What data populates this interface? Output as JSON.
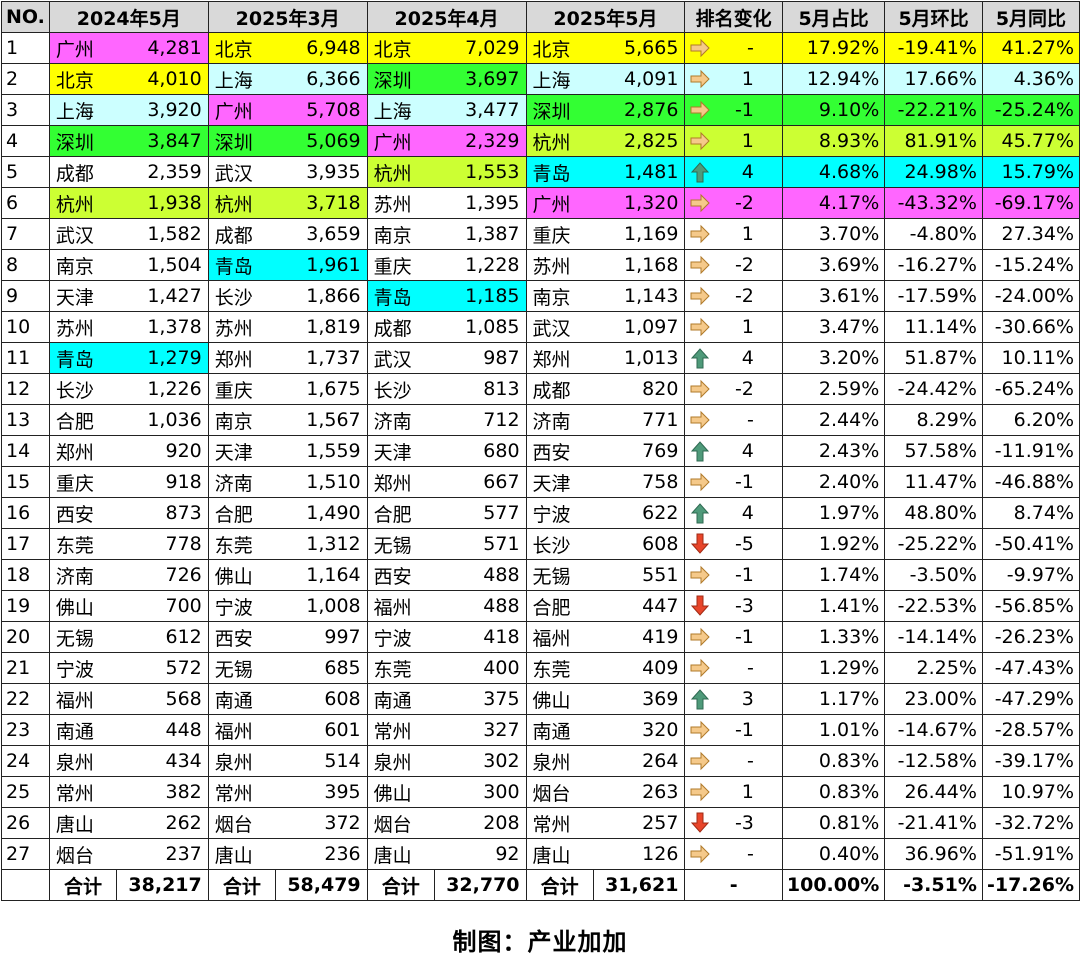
{
  "headers": [
    "NO.",
    "2024年5月",
    "2025年3月",
    "2025年4月",
    "2025年5月",
    "排名变化",
    "5月占比",
    "5月环比",
    "5月同比"
  ],
  "colors": {
    "yellow": "#ffff00",
    "magenta": "#ff66ff",
    "cyan_light": "#ccffff",
    "green": "#33ff33",
    "lime": "#ccff33",
    "cyan": "#00ffff",
    "arrow_right": "#f5c98a",
    "arrow_up": "#4f9a7a",
    "arrow_down": "#e8452a"
  },
  "rows": [
    {
      "no": "1",
      "c1": "广州",
      "v1": "4,281",
      "c2": "北京",
      "v2": "6,948",
      "c3": "北京",
      "v3": "7,029",
      "c4": "北京",
      "v4": "5,665",
      "arrow": "right",
      "chg": "-",
      "share": "17.92%",
      "mom": "-19.41%",
      "yoy": "41.27%"
    },
    {
      "no": "2",
      "c1": "北京",
      "v1": "4,010",
      "c2": "上海",
      "v2": "6,366",
      "c3": "深圳",
      "v3": "3,697",
      "c4": "上海",
      "v4": "4,091",
      "arrow": "right",
      "chg": "1",
      "share": "12.94%",
      "mom": "17.66%",
      "yoy": "4.36%"
    },
    {
      "no": "3",
      "c1": "上海",
      "v1": "3,920",
      "c2": "广州",
      "v2": "5,708",
      "c3": "上海",
      "v3": "3,477",
      "c4": "深圳",
      "v4": "2,876",
      "arrow": "right",
      "chg": "-1",
      "share": "9.10%",
      "mom": "-22.21%",
      "yoy": "-25.24%"
    },
    {
      "no": "4",
      "c1": "深圳",
      "v1": "3,847",
      "c2": "深圳",
      "v2": "5,069",
      "c3": "广州",
      "v3": "2,329",
      "c4": "杭州",
      "v4": "2,825",
      "arrow": "right",
      "chg": "1",
      "share": "8.93%",
      "mom": "81.91%",
      "yoy": "45.77%"
    },
    {
      "no": "5",
      "c1": "成都",
      "v1": "2,359",
      "c2": "武汉",
      "v2": "3,935",
      "c3": "杭州",
      "v3": "1,553",
      "c4": "青岛",
      "v4": "1,481",
      "arrow": "up",
      "chg": "4",
      "share": "4.68%",
      "mom": "24.98%",
      "yoy": "15.79%"
    },
    {
      "no": "6",
      "c1": "杭州",
      "v1": "1,938",
      "c2": "杭州",
      "v2": "3,718",
      "c3": "苏州",
      "v3": "1,395",
      "c4": "广州",
      "v4": "1,320",
      "arrow": "right",
      "chg": "-2",
      "share": "4.17%",
      "mom": "-43.32%",
      "yoy": "-69.17%"
    },
    {
      "no": "7",
      "c1": "武汉",
      "v1": "1,582",
      "c2": "成都",
      "v2": "3,659",
      "c3": "南京",
      "v3": "1,387",
      "c4": "重庆",
      "v4": "1,169",
      "arrow": "right",
      "chg": "1",
      "share": "3.70%",
      "mom": "-4.80%",
      "yoy": "27.34%"
    },
    {
      "no": "8",
      "c1": "南京",
      "v1": "1,504",
      "c2": "青岛",
      "v2": "1,961",
      "c3": "重庆",
      "v3": "1,228",
      "c4": "苏州",
      "v4": "1,168",
      "arrow": "right",
      "chg": "-2",
      "share": "3.69%",
      "mom": "-16.27%",
      "yoy": "-15.24%"
    },
    {
      "no": "9",
      "c1": "天津",
      "v1": "1,427",
      "c2": "长沙",
      "v2": "1,866",
      "c3": "青岛",
      "v3": "1,185",
      "c4": "南京",
      "v4": "1,143",
      "arrow": "right",
      "chg": "-2",
      "share": "3.61%",
      "mom": "-17.59%",
      "yoy": "-24.00%"
    },
    {
      "no": "10",
      "c1": "苏州",
      "v1": "1,378",
      "c2": "苏州",
      "v2": "1,819",
      "c3": "成都",
      "v3": "1,085",
      "c4": "武汉",
      "v4": "1,097",
      "arrow": "right",
      "chg": "1",
      "share": "3.47%",
      "mom": "11.14%",
      "yoy": "-30.66%"
    },
    {
      "no": "11",
      "c1": "青岛",
      "v1": "1,279",
      "c2": "郑州",
      "v2": "1,737",
      "c3": "武汉",
      "v3": "987",
      "c4": "郑州",
      "v4": "1,013",
      "arrow": "up",
      "chg": "4",
      "share": "3.20%",
      "mom": "51.87%",
      "yoy": "10.11%"
    },
    {
      "no": "12",
      "c1": "长沙",
      "v1": "1,226",
      "c2": "重庆",
      "v2": "1,675",
      "c3": "长沙",
      "v3": "813",
      "c4": "成都",
      "v4": "820",
      "arrow": "right",
      "chg": "-2",
      "share": "2.59%",
      "mom": "-24.42%",
      "yoy": "-65.24%"
    },
    {
      "no": "13",
      "c1": "合肥",
      "v1": "1,036",
      "c2": "南京",
      "v2": "1,567",
      "c3": "济南",
      "v3": "712",
      "c4": "济南",
      "v4": "771",
      "arrow": "right",
      "chg": "-",
      "share": "2.44%",
      "mom": "8.29%",
      "yoy": "6.20%"
    },
    {
      "no": "14",
      "c1": "郑州",
      "v1": "920",
      "c2": "天津",
      "v2": "1,559",
      "c3": "天津",
      "v3": "680",
      "c4": "西安",
      "v4": "769",
      "arrow": "up",
      "chg": "4",
      "share": "2.43%",
      "mom": "57.58%",
      "yoy": "-11.91%"
    },
    {
      "no": "15",
      "c1": "重庆",
      "v1": "918",
      "c2": "济南",
      "v2": "1,510",
      "c3": "郑州",
      "v3": "667",
      "c4": "天津",
      "v4": "758",
      "arrow": "right",
      "chg": "-1",
      "share": "2.40%",
      "mom": "11.47%",
      "yoy": "-46.88%"
    },
    {
      "no": "16",
      "c1": "西安",
      "v1": "873",
      "c2": "合肥",
      "v2": "1,490",
      "c3": "合肥",
      "v3": "577",
      "c4": "宁波",
      "v4": "622",
      "arrow": "up",
      "chg": "4",
      "share": "1.97%",
      "mom": "48.80%",
      "yoy": "8.74%"
    },
    {
      "no": "17",
      "c1": "东莞",
      "v1": "778",
      "c2": "东莞",
      "v2": "1,312",
      "c3": "无锡",
      "v3": "571",
      "c4": "长沙",
      "v4": "608",
      "arrow": "down",
      "chg": "-5",
      "share": "1.92%",
      "mom": "-25.22%",
      "yoy": "-50.41%"
    },
    {
      "no": "18",
      "c1": "济南",
      "v1": "726",
      "c2": "佛山",
      "v2": "1,164",
      "c3": "西安",
      "v3": "488",
      "c4": "无锡",
      "v4": "551",
      "arrow": "right",
      "chg": "-1",
      "share": "1.74%",
      "mom": "-3.50%",
      "yoy": "-9.97%"
    },
    {
      "no": "19",
      "c1": "佛山",
      "v1": "700",
      "c2": "宁波",
      "v2": "1,008",
      "c3": "福州",
      "v3": "488",
      "c4": "合肥",
      "v4": "447",
      "arrow": "down",
      "chg": "-3",
      "share": "1.41%",
      "mom": "-22.53%",
      "yoy": "-56.85%"
    },
    {
      "no": "20",
      "c1": "无锡",
      "v1": "612",
      "c2": "西安",
      "v2": "997",
      "c3": "宁波",
      "v3": "418",
      "c4": "福州",
      "v4": "419",
      "arrow": "right",
      "chg": "-1",
      "share": "1.33%",
      "mom": "-14.14%",
      "yoy": "-26.23%"
    },
    {
      "no": "21",
      "c1": "宁波",
      "v1": "572",
      "c2": "无锡",
      "v2": "685",
      "c3": "东莞",
      "v3": "400",
      "c4": "东莞",
      "v4": "409",
      "arrow": "right",
      "chg": "-",
      "share": "1.29%",
      "mom": "2.25%",
      "yoy": "-47.43%"
    },
    {
      "no": "22",
      "c1": "福州",
      "v1": "568",
      "c2": "南通",
      "v2": "608",
      "c3": "南通",
      "v3": "375",
      "c4": "佛山",
      "v4": "369",
      "arrow": "up",
      "chg": "3",
      "share": "1.17%",
      "mom": "23.00%",
      "yoy": "-47.29%"
    },
    {
      "no": "23",
      "c1": "南通",
      "v1": "448",
      "c2": "福州",
      "v2": "601",
      "c3": "常州",
      "v3": "327",
      "c4": "南通",
      "v4": "320",
      "arrow": "right",
      "chg": "-1",
      "share": "1.01%",
      "mom": "-14.67%",
      "yoy": "-28.57%"
    },
    {
      "no": "24",
      "c1": "泉州",
      "v1": "434",
      "c2": "泉州",
      "v2": "514",
      "c3": "泉州",
      "v3": "302",
      "c4": "泉州",
      "v4": "264",
      "arrow": "right",
      "chg": "-",
      "share": "0.83%",
      "mom": "-12.58%",
      "yoy": "-39.17%"
    },
    {
      "no": "25",
      "c1": "常州",
      "v1": "382",
      "c2": "常州",
      "v2": "395",
      "c3": "佛山",
      "v3": "300",
      "c4": "烟台",
      "v4": "263",
      "arrow": "right",
      "chg": "1",
      "share": "0.83%",
      "mom": "26.44%",
      "yoy": "10.97%"
    },
    {
      "no": "26",
      "c1": "唐山",
      "v1": "262",
      "c2": "烟台",
      "v2": "372",
      "c3": "烟台",
      "v3": "208",
      "c4": "常州",
      "v4": "257",
      "arrow": "down",
      "chg": "-3",
      "share": "0.81%",
      "mom": "-21.41%",
      "yoy": "-32.72%"
    },
    {
      "no": "27",
      "c1": "烟台",
      "v1": "237",
      "c2": "唐山",
      "v2": "236",
      "c3": "唐山",
      "v3": "92",
      "c4": "唐山",
      "v4": "126",
      "arrow": "right",
      "chg": "-",
      "share": "0.40%",
      "mom": "36.96%",
      "yoy": "-51.91%"
    }
  ],
  "total": {
    "label": "合计",
    "v1": "38,217",
    "v2": "58,479",
    "v3": "32,770",
    "v4": "31,621",
    "chg": "-",
    "share": "100.00%",
    "mom": "-3.51%",
    "yoy": "-17.26%"
  },
  "highlights": {
    "广州": "magenta",
    "北京": "yellow",
    "上海": "cyan_light",
    "深圳": "green",
    "杭州": "lime",
    "青岛": "cyan"
  },
  "footer": "制图：产业加加"
}
